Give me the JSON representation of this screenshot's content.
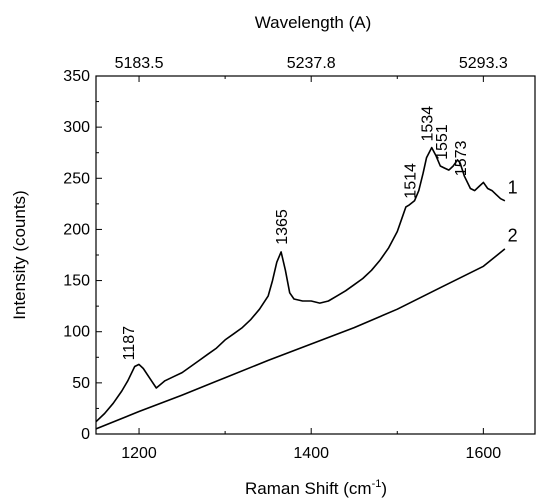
{
  "chart_data": {
    "type": "line",
    "xlabel": "Raman Shift (cm",
    "xlabel_sup": "-1",
    "xlabel_close": ")",
    "ylabel": "Intensity (counts)",
    "top_axis_label": "Wavelength (A)",
    "xlim": [
      1150,
      1660
    ],
    "ylim": [
      0,
      350
    ],
    "x_ticks": [
      "1200",
      "1400",
      "1600"
    ],
    "x_tick_values": [
      1200,
      1400,
      1600
    ],
    "y_ticks": [
      "0",
      "50",
      "100",
      "150",
      "200",
      "250",
      "300",
      "350"
    ],
    "y_tick_values": [
      0,
      50,
      100,
      150,
      200,
      250,
      300,
      350
    ],
    "top_ticks": [
      "5183.5",
      "5237.8",
      "5293.3"
    ],
    "top_tick_positions": [
      1200,
      1400,
      1600
    ],
    "grid": false,
    "series": [
      {
        "name": "1",
        "x": [
          1150,
          1160,
          1170,
          1180,
          1187,
          1195,
          1200,
          1205,
          1212,
          1220,
          1230,
          1240,
          1250,
          1260,
          1270,
          1280,
          1290,
          1300,
          1310,
          1320,
          1330,
          1340,
          1350,
          1355,
          1360,
          1365,
          1370,
          1375,
          1380,
          1390,
          1400,
          1410,
          1420,
          1430,
          1440,
          1450,
          1460,
          1470,
          1480,
          1490,
          1500,
          1505,
          1510,
          1514,
          1520,
          1525,
          1530,
          1534,
          1540,
          1545,
          1550,
          1555,
          1560,
          1565,
          1570,
          1573,
          1578,
          1585,
          1590,
          1595,
          1600,
          1605,
          1610,
          1615,
          1620,
          1625
        ],
        "values": [
          12,
          20,
          30,
          42,
          52,
          66,
          68,
          64,
          55,
          45,
          52,
          56,
          60,
          66,
          72,
          78,
          84,
          92,
          98,
          104,
          112,
          122,
          135,
          150,
          168,
          178,
          160,
          138,
          132,
          130,
          130,
          128,
          130,
          135,
          140,
          146,
          152,
          160,
          170,
          182,
          198,
          210,
          222,
          224,
          228,
          238,
          255,
          270,
          280,
          272,
          262,
          260,
          258,
          262,
          268,
          265,
          252,
          240,
          238,
          242,
          246,
          240,
          238,
          234,
          230,
          228
        ]
      },
      {
        "name": "2",
        "x": [
          1150,
          1200,
          1250,
          1300,
          1350,
          1400,
          1450,
          1500,
          1550,
          1600,
          1625
        ],
        "values": [
          5,
          22,
          38,
          55,
          72,
          88,
          104,
          122,
          143,
          164,
          181
        ]
      }
    ],
    "annotations": [
      {
        "text": "1187",
        "x": 1187,
        "y": 72
      },
      {
        "text": "1365",
        "x": 1365,
        "y": 185
      },
      {
        "text": "1514",
        "x": 1514,
        "y": 230
      },
      {
        "text": "1534",
        "x": 1534,
        "y": 286
      },
      {
        "text": "1551",
        "x": 1551,
        "y": 268
      },
      {
        "text": "1573",
        "x": 1573,
        "y": 252
      }
    ],
    "series_labels": [
      {
        "text": "1",
        "x": 1634,
        "y": 235
      },
      {
        "text": "2",
        "x": 1634,
        "y": 188
      }
    ]
  }
}
